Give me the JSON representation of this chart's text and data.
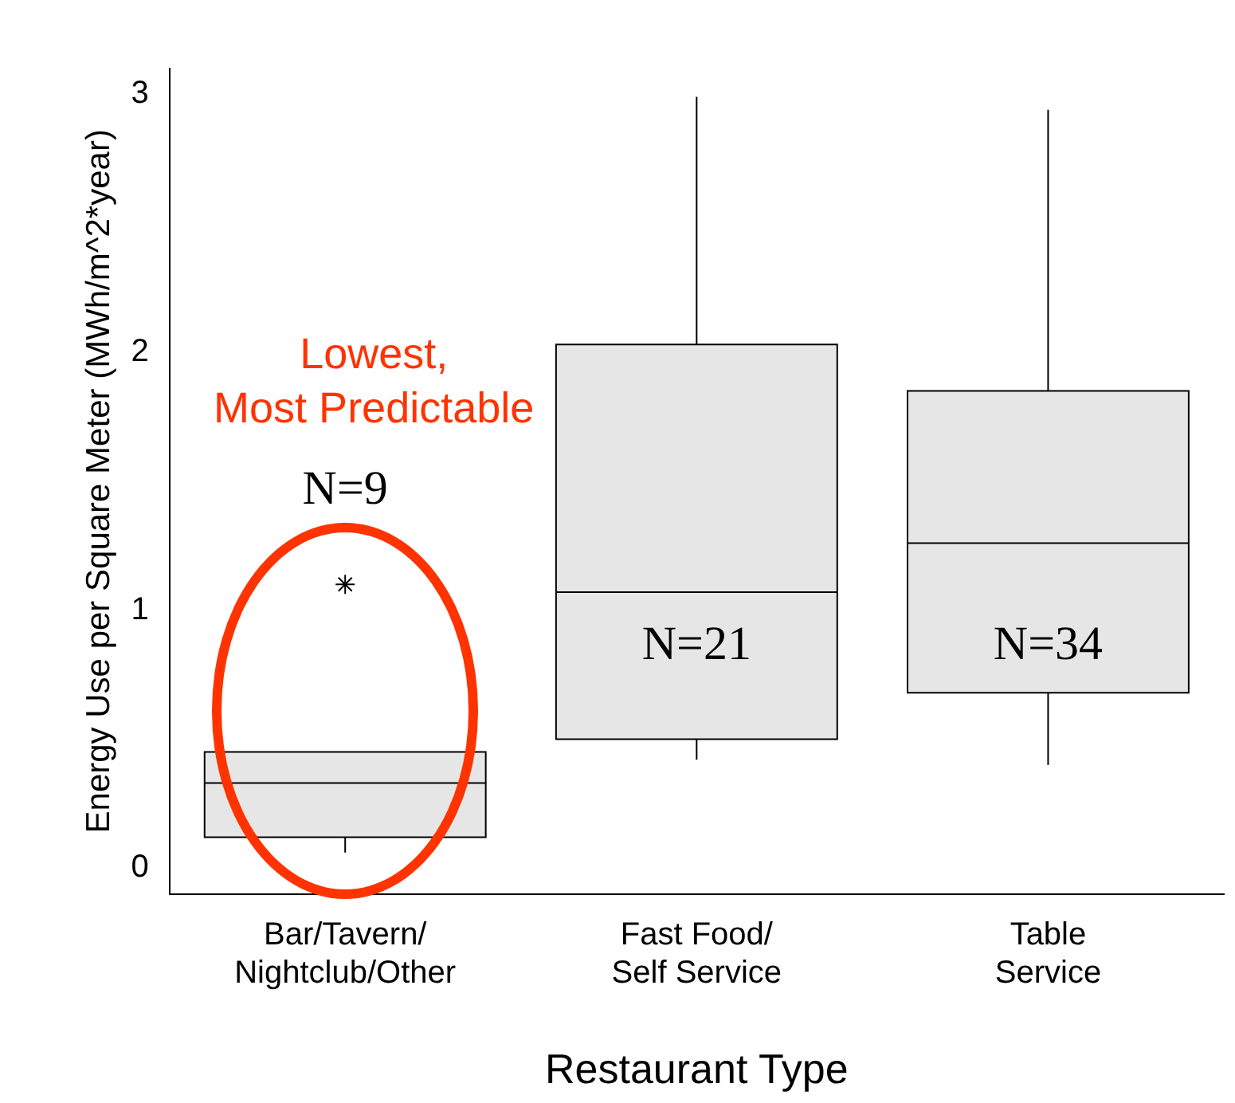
{
  "chart_data": {
    "type": "box",
    "xlabel": "Restaurant Type",
    "ylabel": "Energy Use per Square Meter (MWh/m^2*year)",
    "categories": [
      "Bar/Tavern/\nNightclub/Other",
      "Fast Food/\nSelf Service",
      "Table\nService"
    ],
    "color": "#e6e6e6",
    "boxes": [
      {
        "low": 0.06,
        "q1": 0.12,
        "median": 0.33,
        "q3": 0.45,
        "high": 0.45,
        "outliers": [
          1.1
        ]
      },
      {
        "low": 0.42,
        "q1": 0.5,
        "median": 1.07,
        "q3": 2.03,
        "high": 2.99
      },
      {
        "low": 0.4,
        "q1": 0.68,
        "median": 1.26,
        "q3": 1.85,
        "high": 2.94
      }
    ],
    "ylim": [
      -0.1,
      3.1
    ],
    "yticks": [
      0,
      1,
      2,
      3
    ],
    "grid": false,
    "legend": false,
    "marker": "star",
    "annotations": [
      "Lowest,\nMost Predictable",
      "N=9",
      "N=21",
      "N=34"
    ]
  }
}
